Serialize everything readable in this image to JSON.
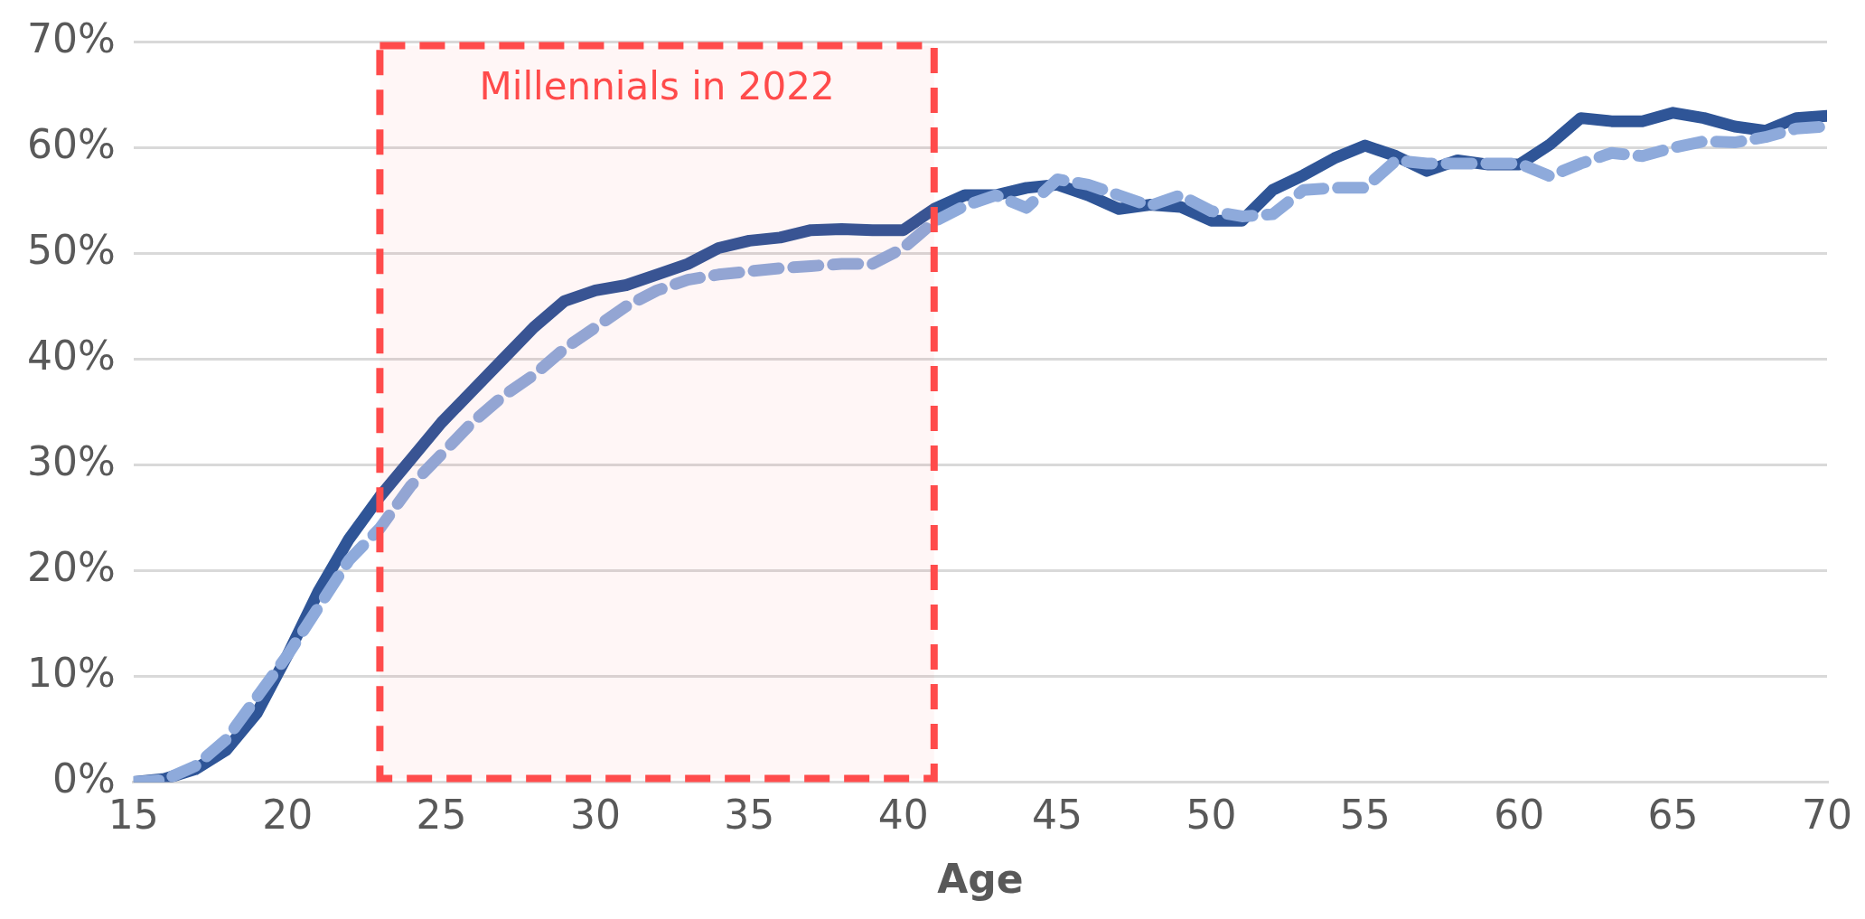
{
  "chart_data": {
    "type": "line",
    "xlabel": "Age",
    "x": [
      15,
      16,
      17,
      18,
      19,
      20,
      21,
      22,
      23,
      24,
      25,
      26,
      27,
      28,
      29,
      30,
      31,
      32,
      33,
      34,
      35,
      36,
      37,
      38,
      39,
      40,
      41,
      42,
      43,
      44,
      45,
      46,
      47,
      48,
      49,
      50,
      51,
      52,
      53,
      54,
      55,
      56,
      57,
      58,
      59,
      60,
      61,
      62,
      63,
      64,
      65,
      66,
      67,
      68,
      69,
      70
    ],
    "series": [
      {
        "color": "#2f5597",
        "line_style": "solid",
        "values": [
          0,
          0.3,
          1.2,
          3,
          6.5,
          12,
          18,
          23,
          27,
          30.5,
          34,
          37,
          40,
          43,
          45.5,
          46.5,
          47,
          48,
          49,
          50.5,
          51.2,
          51.5,
          52.2,
          52.3,
          52.2,
          52.2,
          54.2,
          55.5,
          55.5,
          56.2,
          56.5,
          55.5,
          54.2,
          54.6,
          54.4,
          53.1,
          53.1,
          56,
          57.4,
          59,
          60.2,
          59.2,
          57.8,
          58.8,
          58.4,
          58.4,
          60.3,
          62.8,
          62.5,
          62.5,
          63.3,
          62.8,
          62,
          61.6,
          62.8,
          63
        ]
      },
      {
        "color": "#8eaadb",
        "line_style": "dashed",
        "values": [
          0,
          0.2,
          1.5,
          4,
          8,
          12,
          16.5,
          21,
          24,
          28,
          31,
          34,
          36.5,
          38.5,
          41,
          43,
          45,
          46.5,
          47.5,
          48,
          48.3,
          48.6,
          48.8,
          49,
          49,
          50.5,
          53,
          54.5,
          55.5,
          54.3,
          57,
          56.5,
          55.5,
          54.5,
          55.5,
          54,
          53.5,
          53.7,
          56,
          56.2,
          56.2,
          58.8,
          58.5,
          58.5,
          58.5,
          58.5,
          57.3,
          58.5,
          59.5,
          59.2,
          60,
          60.6,
          60.5,
          61,
          61.8,
          62
        ]
      }
    ],
    "xlim": [
      15,
      70
    ],
    "xticks": [
      15,
      20,
      25,
      30,
      35,
      40,
      45,
      50,
      55,
      60,
      65,
      70
    ],
    "ylim": [
      0,
      70
    ],
    "yticks": [
      {
        "value": 0,
        "label": "0%"
      },
      {
        "value": 10,
        "label": "10%"
      },
      {
        "value": 20,
        "label": "20%"
      },
      {
        "value": 30,
        "label": "30%"
      },
      {
        "value": 40,
        "label": "40%"
      },
      {
        "value": 50,
        "label": "50%"
      },
      {
        "value": 60,
        "label": "60%"
      },
      {
        "value": 70,
        "label": "70%"
      }
    ],
    "grid": "y",
    "legend": false,
    "marker": "none",
    "bands": [
      {
        "axis": "x",
        "from": 23,
        "to": 41,
        "label": "Millennials in 2022",
        "color": "#ff4b4b"
      }
    ]
  }
}
